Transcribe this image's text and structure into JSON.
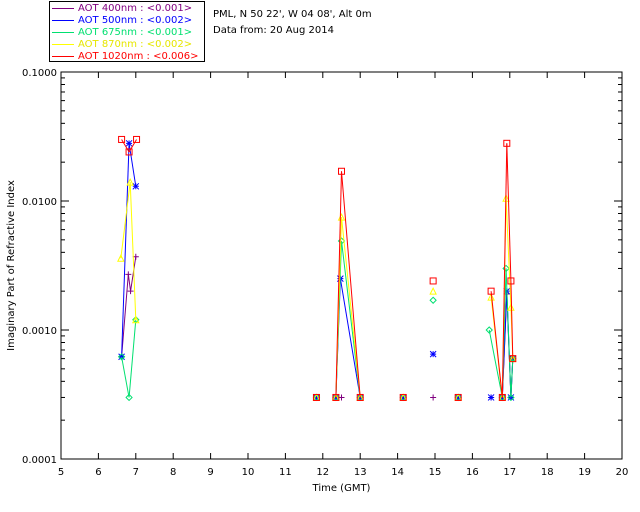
{
  "header": {
    "site": "PML, N 50 22', W 04 08', Alt 0m",
    "date": "Data from: 20 Aug 2014"
  },
  "chart_data": {
    "type": "scatter",
    "title": "",
    "xlabel": "Time (GMT)",
    "ylabel": "Imaginary Part of Refractive Index",
    "xlim": [
      5,
      20
    ],
    "ylim": [
      0.0001,
      0.1
    ],
    "yscale": "log",
    "x_ticks": [
      "5",
      "6",
      "7",
      "8",
      "9",
      "10",
      "11",
      "12",
      "13",
      "14",
      "15",
      "16",
      "17",
      "18",
      "19",
      "20"
    ],
    "y_ticks": [
      "0.0001",
      "0.0010",
      "0.0100",
      "0.1000"
    ],
    "legend_position": "top-left outside",
    "series": [
      {
        "name": "AOT 400nm : <0.001>",
        "color": "#800080",
        "marker": "plus",
        "points": [
          [
            6.62,
            0.00062
          ],
          [
            6.8,
            0.0027
          ],
          [
            6.86,
            0.002
          ],
          [
            7.0,
            0.0037
          ],
          [
            11.83,
            0.0003
          ],
          [
            12.35,
            0.0003
          ],
          [
            12.5,
            0.0003
          ],
          [
            13.0,
            0.0003
          ],
          [
            14.15,
            0.0003
          ],
          [
            14.95,
            0.0003
          ],
          [
            15.62,
            0.0003
          ],
          [
            16.5,
            0.0003
          ],
          [
            16.8,
            0.0003
          ],
          [
            16.92,
            0.0019
          ],
          [
            17.03,
            0.0003
          ],
          [
            17.08,
            0.0006
          ]
        ]
      },
      {
        "name": "AOT 500nm : <0.002>",
        "color": "#0000ff",
        "marker": "asterisk",
        "points": [
          [
            6.62,
            0.00062
          ],
          [
            6.82,
            0.028
          ],
          [
            7.0,
            0.013
          ],
          [
            11.83,
            0.0003
          ],
          [
            12.35,
            0.0003
          ],
          [
            12.47,
            0.0025
          ],
          [
            13.0,
            0.0003
          ],
          [
            14.15,
            0.0003
          ],
          [
            14.95,
            0.00065
          ],
          [
            15.62,
            0.0003
          ],
          [
            16.5,
            0.0003
          ],
          [
            16.8,
            0.0003
          ],
          [
            16.92,
            0.002
          ],
          [
            17.03,
            0.0003
          ],
          [
            17.08,
            0.0006
          ]
        ]
      },
      {
        "name": "AOT 675nm : <0.001>",
        "color": "#00e070",
        "marker": "diamond",
        "points": [
          [
            6.62,
            0.00062
          ],
          [
            6.82,
            0.0003
          ],
          [
            7.0,
            0.0012
          ],
          [
            11.83,
            0.0003
          ],
          [
            12.35,
            0.0003
          ],
          [
            12.5,
            0.0049
          ],
          [
            13.0,
            0.0003
          ],
          [
            14.15,
            0.0003
          ],
          [
            14.95,
            0.0017
          ],
          [
            15.62,
            0.0003
          ],
          [
            16.45,
            0.001
          ],
          [
            16.8,
            0.0003
          ],
          [
            16.9,
            0.003
          ],
          [
            17.03,
            0.0003
          ],
          [
            17.08,
            0.0006
          ]
        ]
      },
      {
        "name": "AOT 870nm : <0.002>",
        "color": "#ffff00",
        "marker": "triangle",
        "points": [
          [
            6.6,
            0.0036
          ],
          [
            6.85,
            0.014
          ],
          [
            7.0,
            0.0012
          ],
          [
            11.83,
            0.0003
          ],
          [
            12.35,
            0.0003
          ],
          [
            12.5,
            0.0075
          ],
          [
            13.0,
            0.0003
          ],
          [
            14.15,
            0.0003
          ],
          [
            14.95,
            0.002
          ],
          [
            15.62,
            0.0003
          ],
          [
            16.5,
            0.0018
          ],
          [
            16.8,
            0.0003
          ],
          [
            16.9,
            0.0105
          ],
          [
            17.03,
            0.0015
          ],
          [
            17.08,
            0.0006
          ]
        ]
      },
      {
        "name": "AOT 1020nm : <0.006>",
        "color": "#ff0000",
        "marker": "square",
        "points": [
          [
            6.62,
            0.03
          ],
          [
            6.82,
            0.024
          ],
          [
            7.02,
            0.03
          ],
          [
            11.83,
            0.0003
          ],
          [
            12.35,
            0.0003
          ],
          [
            12.5,
            0.017
          ],
          [
            13.0,
            0.0003
          ],
          [
            14.15,
            0.0003
          ],
          [
            14.95,
            0.0024
          ],
          [
            15.62,
            0.0003
          ],
          [
            16.5,
            0.002
          ],
          [
            16.8,
            0.0003
          ],
          [
            16.92,
            0.028
          ],
          [
            17.03,
            0.0024
          ],
          [
            17.08,
            0.0006
          ]
        ]
      }
    ]
  }
}
